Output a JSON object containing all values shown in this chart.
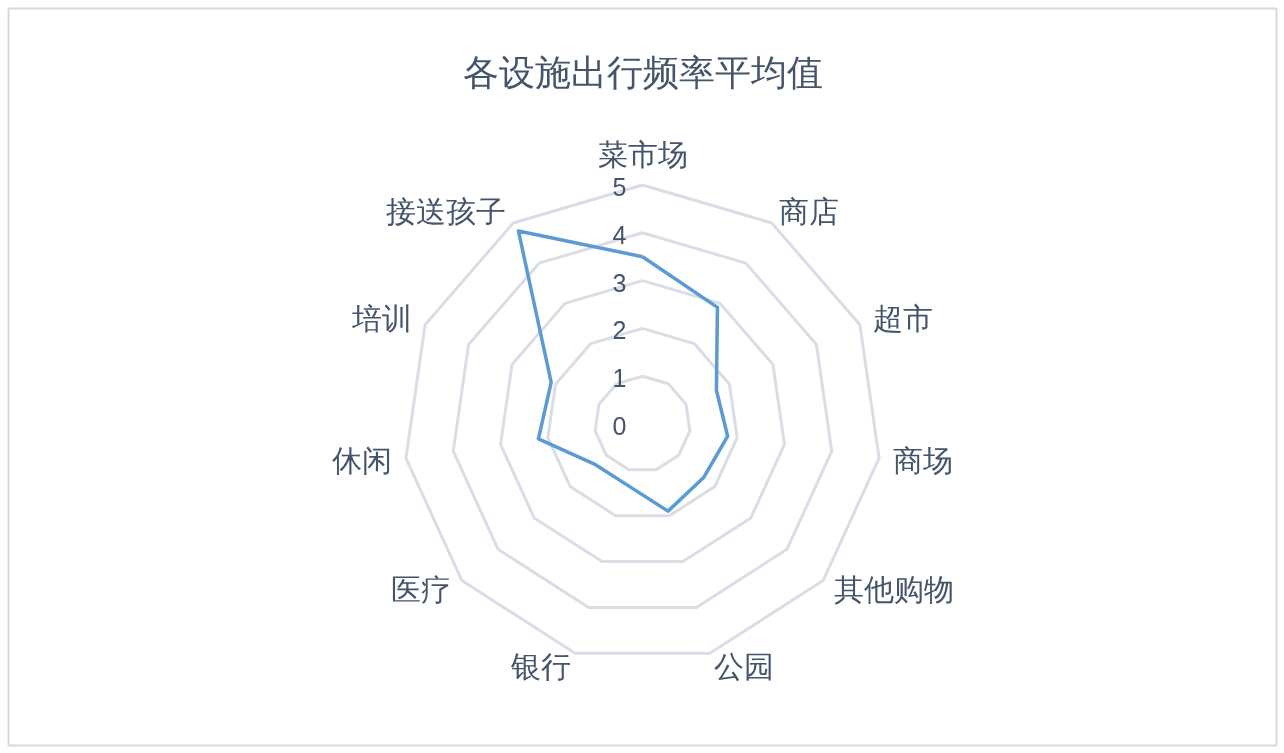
{
  "chart_data": {
    "type": "radar",
    "title": "各设施出行频率平均值",
    "categories": [
      "菜市场",
      "商店",
      "超市",
      "商场",
      "其他购物",
      "公园",
      "银行",
      "医疗",
      "休闲",
      "培训",
      "接送孩子"
    ],
    "series": [
      {
        "color": "#5b9bd5",
        "values": [
          3.5,
          2.9,
          1.7,
          1.8,
          1.7,
          1.9,
          1.3,
          1.3,
          2.2,
          2.1,
          4.8
        ]
      }
    ],
    "ylim": [
      0,
      5
    ],
    "yticks": [
      0,
      1,
      2,
      3,
      4,
      5
    ],
    "grid": true
  }
}
